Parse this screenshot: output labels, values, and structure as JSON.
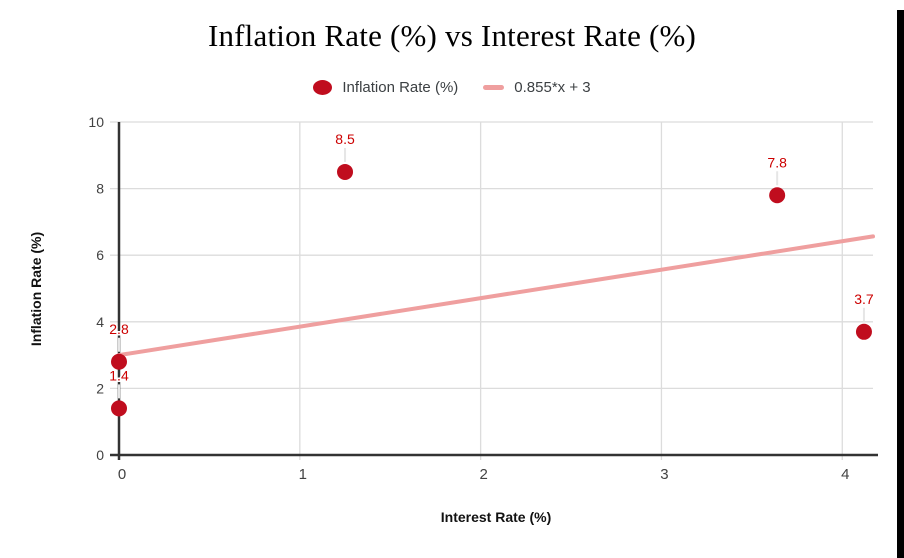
{
  "chart": {
    "title": "Inflation Rate (%) vs Interest Rate (%)",
    "legend": {
      "series_label": "Inflation Rate (%)",
      "trend_label": "0.855*x + 3"
    },
    "x_axis_title": "Interest Rate (%)",
    "y_axis_title": "Inflation Rate (%)"
  },
  "chart_data": {
    "type": "scatter",
    "title": "Inflation Rate (%) vs Interest Rate (%)",
    "xlabel": "Interest Rate (%)",
    "ylabel": "Inflation Rate (%)",
    "xlim": [
      0,
      4.17
    ],
    "ylim": [
      0,
      10
    ],
    "x_ticks": [
      0,
      1,
      2,
      3,
      4
    ],
    "y_ticks": [
      0,
      2,
      4,
      6,
      8,
      10
    ],
    "grid": true,
    "legend_position": "top",
    "series": [
      {
        "name": "Inflation Rate (%)",
        "color": "#c00d1e",
        "label_color": "#cc0000",
        "points": [
          {
            "x": 0,
            "y": 2.8,
            "label": "2.8"
          },
          {
            "x": 0,
            "y": 1.4,
            "label": "1.4"
          },
          {
            "x": 1.25,
            "y": 8.5,
            "label": "8.5"
          },
          {
            "x": 3.64,
            "y": 7.8,
            "label": "7.8"
          },
          {
            "x": 4.12,
            "y": 3.7,
            "label": "3.7"
          }
        ]
      }
    ],
    "trendline": {
      "equation": "0.855*x + 3",
      "slope": 0.855,
      "intercept": 3,
      "x_start": 0,
      "x_end": 4.17,
      "color": "#ef9f9f"
    },
    "colors": {
      "gridline": "#dcdcdc",
      "axis": "#333333",
      "tick_label": "#424242",
      "leader_line": "#e6e6e6"
    }
  },
  "window": {
    "edge_color": "#000000"
  }
}
